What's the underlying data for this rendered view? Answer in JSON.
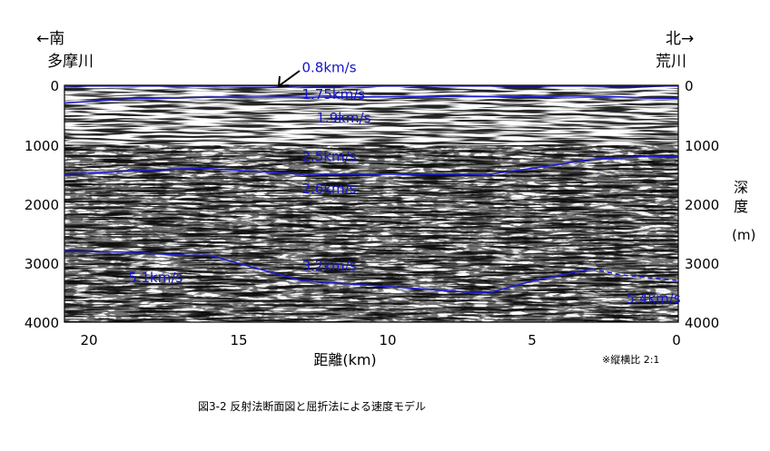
{
  "header": {
    "left_direction": "←南",
    "left_place": "多摩川",
    "right_direction": "北→",
    "right_place": "荒川"
  },
  "axes": {
    "y_label_chars": [
      "深",
      "度"
    ],
    "y_unit": "(m)",
    "x_label": "距離(km)",
    "x_ticks": [
      "20",
      "15",
      "10",
      "5",
      "0"
    ],
    "x_tick_values": [
      20,
      15,
      10,
      5,
      0
    ],
    "x_range_km": [
      21.2,
      0
    ],
    "y_ticks": [
      "0",
      "1000",
      "2000",
      "3000",
      "4000"
    ],
    "y_tick_values": [
      0,
      1000,
      2000,
      3000,
      4000
    ],
    "y_range_m": [
      0,
      4000
    ]
  },
  "aspect_note": "※縦横比 2:1",
  "caption": "図3-2 反射法断面図と屈折法による速度モデル",
  "velocity_labels": [
    {
      "text": "0.8km/s",
      "dist_km": 13.0,
      "depth_m": -300
    },
    {
      "text": "1.75km/s",
      "dist_km": 13.0,
      "depth_m": 150
    },
    {
      "text": "1.9km/s",
      "dist_km": 12.5,
      "depth_m": 550
    },
    {
      "text": "2.5km/s",
      "dist_km": 13.0,
      "depth_m": 1200
    },
    {
      "text": "2.6km/s",
      "dist_km": 13.0,
      "depth_m": 1750
    },
    {
      "text": "3.2km/s",
      "dist_km": 13.0,
      "depth_m": 3050
    },
    {
      "text": "5.1km/s",
      "dist_km": 19.0,
      "depth_m": 3250
    },
    {
      "text": "5.4km/s",
      "dist_km": 1.8,
      "depth_m": 3600
    }
  ],
  "boundaries": [
    {
      "name": "surface",
      "points": [
        [
          21.2,
          0
        ],
        [
          0,
          0
        ]
      ]
    },
    {
      "name": "shallow",
      "points": [
        [
          21.2,
          300
        ],
        [
          19,
          230
        ],
        [
          16,
          200
        ],
        [
          12,
          200
        ],
        [
          9,
          190
        ],
        [
          6,
          190
        ],
        [
          3,
          180
        ],
        [
          0,
          230
        ]
      ]
    },
    {
      "name": "middle",
      "points": [
        [
          21.2,
          1500
        ],
        [
          19,
          1450
        ],
        [
          16.5,
          1400
        ],
        [
          13,
          1500
        ],
        [
          6.5,
          1500
        ],
        [
          5,
          1400
        ],
        [
          3,
          1250
        ],
        [
          1,
          1200
        ],
        [
          0,
          1200
        ]
      ]
    },
    {
      "name": "deep",
      "points": [
        [
          21.2,
          2800
        ],
        [
          19,
          2820
        ],
        [
          17,
          2870
        ],
        [
          16.2,
          2870
        ],
        [
          13,
          3300
        ],
        [
          7,
          3500
        ],
        [
          6.5,
          3500
        ],
        [
          5,
          3300
        ],
        [
          3,
          3100
        ]
      ]
    },
    {
      "name": "deep-dashed",
      "points": [
        [
          3,
          3100
        ],
        [
          2,
          3200
        ],
        [
          0,
          3300
        ]
      ],
      "dashed": true
    }
  ],
  "colors": {
    "velocity_line": "#1e1ed2",
    "velocity_text": "#1515c8",
    "surface_line": "#0a0ab4"
  },
  "arrow_pointer": {
    "icon": "arrow-down-left-icon",
    "points_to": "0.8km/s surface layer"
  }
}
